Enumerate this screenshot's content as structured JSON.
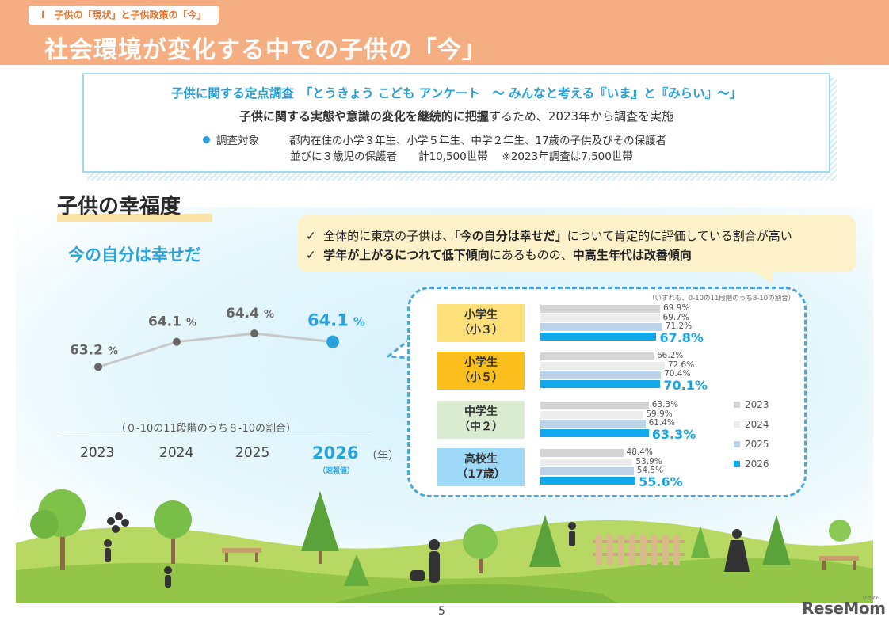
{
  "header": {
    "section_tag": "Ⅰ　子供の「現状」と子供政策の「今」",
    "title": "社会環境が変化する中での子供の「今」"
  },
  "survey": {
    "title": "子供に関する定点調査　「とうきょう こども アンケート　～ みんなと考える『いま』と『みらい』～」",
    "lead_bold": "子供に関する実態や意識の変化を継続的に把握",
    "lead_rest": "するため、2023年から調査を実施",
    "target_label": "調査対象",
    "target_line1": "都内在住の小学３年生、小学５年生、中学２年生、17歳の子供及びその保護者",
    "target_line2": "並びに３歳児の保護者　　計10,500世帯　 ※2023年調査は7,500世帯"
  },
  "happiness": {
    "heading": "子供の幸福度",
    "subheading": "今の自分は幸せだ",
    "summary": [
      {
        "check": "✓",
        "pre": "全体的に東京の子供は、",
        "bold": "「今の自分は幸せだ」",
        "post": "について肯定的に評価している割合が高い"
      },
      {
        "check": "✓",
        "pre": "",
        "bold": "学年が上がるにつれて低下傾向",
        "post": "にあるものの、",
        "bold2": "中高生年代は改善傾向"
      }
    ],
    "range_note": "（０-10の11段階のうち８-10の割合）",
    "year_unit": "（年）",
    "prelim_note": "（速報値）",
    "bar_note": "（いずれも、0-10の11段階のうち8-10の割合）"
  },
  "chart_data": [
    {
      "type": "line",
      "title": "",
      "x": [
        "2023",
        "2024",
        "2025",
        "2026"
      ],
      "series": [
        {
          "values": [
            63.2,
            64.1,
            64.4,
            64.1
          ]
        }
      ],
      "value_labels": [
        "63.2",
        "64.1",
        "64.4",
        "64.1"
      ],
      "unit": "%",
      "ylim": [
        62.5,
        65.0
      ]
    },
    {
      "type": "bar",
      "orientation": "horizontal",
      "categories": [
        {
          "line1": "小学生",
          "line2": "（小３）"
        },
        {
          "line1": "小学生",
          "line2": "（小５）"
        },
        {
          "line1": "中学生",
          "line2": "（中２）"
        },
        {
          "line1": "高校生",
          "line2": "（17歳）"
        }
      ],
      "series": [
        {
          "name": "2023",
          "values": [
            69.9,
            66.2,
            63.3,
            48.4
          ],
          "color": "#d4d4d4"
        },
        {
          "name": "2024",
          "values": [
            69.7,
            72.6,
            59.9,
            53.9
          ],
          "color": "#ededed"
        },
        {
          "name": "2025",
          "values": [
            71.2,
            70.4,
            61.4,
            54.5
          ],
          "color": "#bcd3ea"
        },
        {
          "name": "2026",
          "values": [
            67.8,
            70.1,
            63.3,
            55.6
          ],
          "color": "#12a8ec"
        }
      ],
      "unit": "%",
      "xlim": [
        0,
        100
      ]
    }
  ],
  "colors": {
    "header_bg": "#f4ae82",
    "accent_blue": "#2aa3dd",
    "grade_colors": [
      "#fde07a",
      "#fbbf1d",
      "#d9ecd2",
      "#9fd9f8"
    ]
  },
  "footer": {
    "page_number": "5",
    "brand": "ReseMom",
    "brand_sub": "リセマム"
  }
}
